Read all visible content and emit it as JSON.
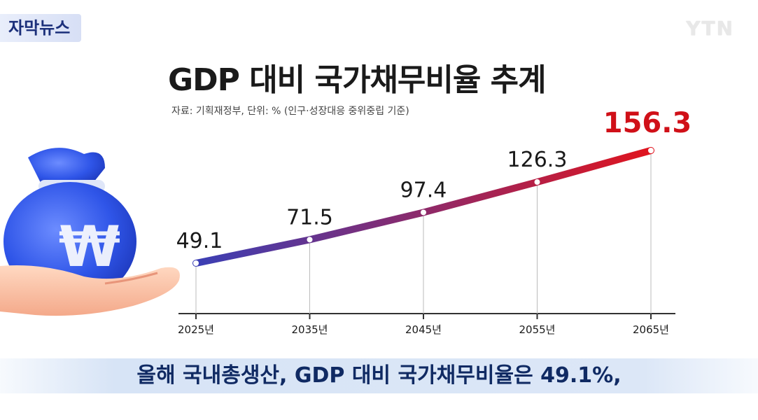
{
  "header": {
    "tag": "자막뉴스",
    "logo": "YTN"
  },
  "chart_data": {
    "type": "line",
    "title": "GDP 대비 국가채무비율 추계",
    "source": "자료: 기획재정부, 단위: % (인구·성장대응 중위중립 기준)",
    "categories": [
      "2025년",
      "2035년",
      "2045년",
      "2055년",
      "2065년"
    ],
    "values": [
      49.1,
      71.5,
      97.4,
      126.3,
      156.3
    ],
    "value_labels": [
      "49.1",
      "71.5",
      "97.4",
      "126.3",
      "156.3"
    ],
    "colors": {
      "start": "#3b3fb5",
      "end": "#e0141e",
      "highlight_label": "#d01018"
    },
    "ylim": [
      40,
      160
    ]
  },
  "caption": {
    "text": "올해 국내총생산, GDP 대비 국가채무비율은 49.1%,"
  }
}
